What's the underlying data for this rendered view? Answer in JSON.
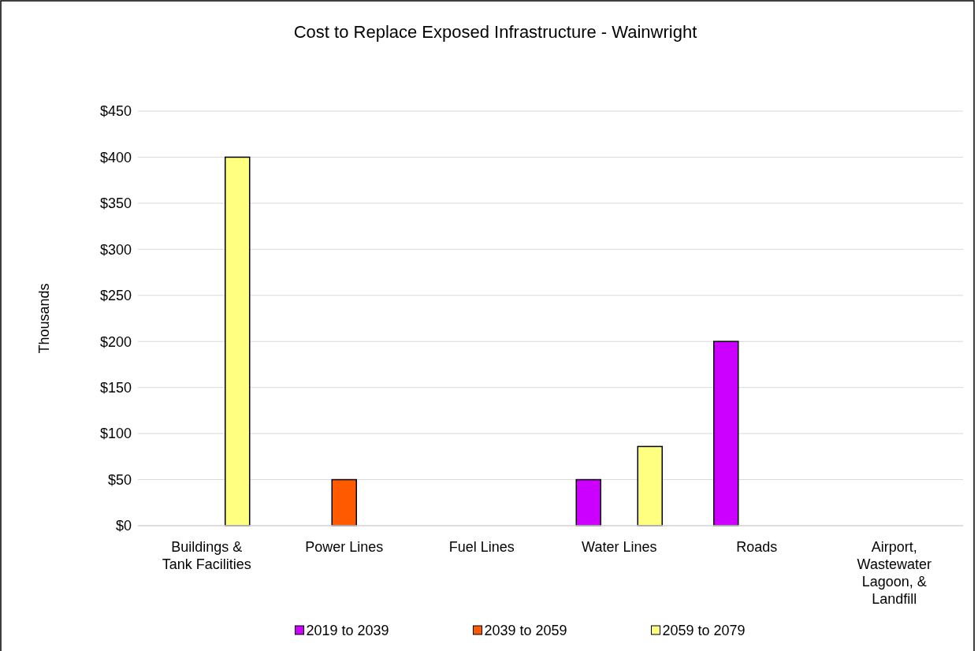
{
  "chart_data": {
    "type": "bar",
    "title": "Cost to Replace Exposed Infrastructure - Wainwright",
    "ylabel": "Thousands",
    "categories": [
      "Buildings & Tank Facilities",
      "Power Lines",
      "Fuel Lines",
      "Water Lines",
      "Roads",
      "Airport, Wastewater Lagoon, & Landfill"
    ],
    "series": [
      {
        "name": "2019 to 2039",
        "color": "#cc00ff",
        "values": [
          null,
          null,
          null,
          50,
          200,
          null
        ]
      },
      {
        "name": "2039 to 2059",
        "color": "#ff5a00",
        "values": [
          null,
          50,
          null,
          null,
          null,
          null
        ]
      },
      {
        "name": "2059 to 2079",
        "color": "#ffff80",
        "values": [
          400,
          null,
          null,
          86,
          null,
          null
        ]
      }
    ],
    "ylim": [
      0,
      450
    ],
    "yticks": [
      {
        "value": 0,
        "label": "$0"
      },
      {
        "value": 50,
        "label": "$50"
      },
      {
        "value": 100,
        "label": "$100"
      },
      {
        "value": 150,
        "label": "$150"
      },
      {
        "value": 200,
        "label": "$200"
      },
      {
        "value": 250,
        "label": "$250"
      },
      {
        "value": 300,
        "label": "$300"
      },
      {
        "value": 350,
        "label": "$350"
      },
      {
        "value": 400,
        "label": "$400"
      },
      {
        "value": 450,
        "label": "$450"
      }
    ],
    "grid": "y",
    "legend": "bottom"
  }
}
